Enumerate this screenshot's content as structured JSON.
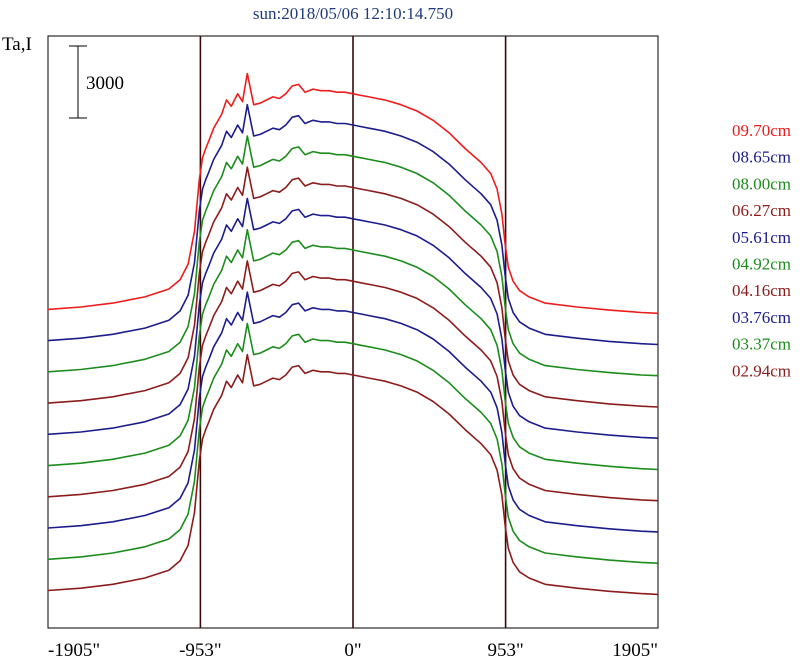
{
  "chart_data": {
    "type": "line",
    "title": "sun:2018/05/06 12:10:14.750",
    "ylabel": "Ta,I",
    "scale_bar_label": "3000",
    "scale_bar_value": 3000,
    "x_ticks": [
      {
        "label": "-1905\"",
        "value": -1905
      },
      {
        "label": "-953\"",
        "value": -953
      },
      {
        "label": "0\"",
        "value": 0
      },
      {
        "label": "953\"",
        "value": 953
      },
      {
        "label": "1905\"",
        "value": 1905
      }
    ],
    "vlines": [
      -953,
      0,
      953
    ],
    "xlim": [
      -1905,
      1905
    ],
    "ylim": [
      -900,
      37000
    ],
    "grid": false,
    "legend_position": "right",
    "profile": {
      "x": [
        -1905,
        -1700,
        -1500,
        -1300,
        -1150,
        -1080,
        -1030,
        -990,
        -960,
        -940,
        -920,
        -900,
        -870,
        -820,
        -790,
        -760,
        -720,
        -690,
        -660,
        -620,
        -580,
        -540,
        -500,
        -460,
        -420,
        -380,
        -340,
        -300,
        -250,
        -200,
        -150,
        -100,
        -50,
        0,
        50,
        100,
        150,
        200,
        300,
        400,
        500,
        600,
        700,
        800,
        860,
        900,
        930,
        950,
        970,
        1000,
        1040,
        1100,
        1200,
        1400,
        1600,
        1800,
        1905
      ],
      "y": [
        500,
        650,
        900,
        1300,
        1800,
        2400,
        3400,
        5500,
        8800,
        10200,
        10800,
        11300,
        12100,
        13000,
        13900,
        13500,
        14300,
        13800,
        15600,
        13600,
        13700,
        13900,
        14100,
        14000,
        14300,
        14800,
        14900,
        14400,
        14600,
        14500,
        14500,
        14400,
        14400,
        14300,
        14200,
        14100,
        14000,
        13900,
        13600,
        13200,
        12600,
        11800,
        10800,
        9900,
        9200,
        8200,
        6600,
        4700,
        3200,
        2300,
        1700,
        1300,
        900,
        650,
        450,
        300,
        250
      ]
    },
    "series": [
      {
        "name": "09.70cm",
        "color": "#ee1c1c",
        "offset": 19000
      },
      {
        "name": "08.65cm",
        "color": "#1c1c8c",
        "offset": 17000
      },
      {
        "name": "08.00cm",
        "color": "#1c8c1c",
        "offset": 15000
      },
      {
        "name": "06.27cm",
        "color": "#8c1c1c",
        "offset": 13000
      },
      {
        "name": "05.61cm",
        "color": "#1c1c8c",
        "offset": 11000
      },
      {
        "name": "04.92cm",
        "color": "#1c8c1c",
        "offset": 9000
      },
      {
        "name": "04.16cm",
        "color": "#8c1c1c",
        "offset": 7000
      },
      {
        "name": "03.76cm",
        "color": "#1c1c8c",
        "offset": 5000
      },
      {
        "name": "03.37cm",
        "color": "#1c8c1c",
        "offset": 3000
      },
      {
        "name": "02.94cm",
        "color": "#8c1c1c",
        "offset": 1000
      }
    ]
  }
}
